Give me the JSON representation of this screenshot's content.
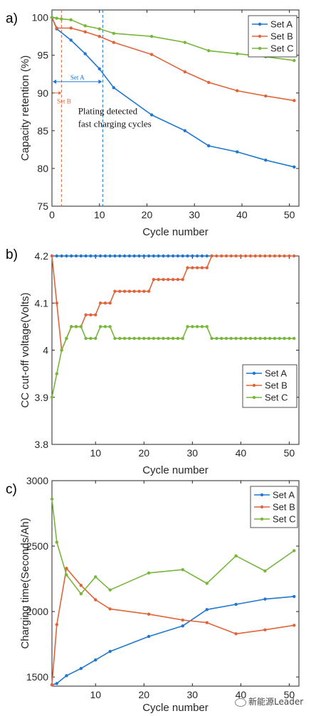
{
  "watermark": "新能源Leader",
  "colors": {
    "set_a": "#1f77d0",
    "set_b": "#e0643a",
    "set_c": "#78b63c"
  },
  "chart_data": [
    {
      "panel_label": "a)",
      "type": "line",
      "xlabel": "Cycle number",
      "ylabel": "Capacity retention (%)",
      "xlim": [
        0,
        52
      ],
      "ylim": [
        75,
        101
      ],
      "xticks": [
        0,
        10,
        20,
        30,
        40,
        50
      ],
      "yticks": [
        75,
        80,
        85,
        90,
        95,
        100
      ],
      "grid": false,
      "legend_position": "top-right",
      "series": [
        {
          "name": "Set A",
          "color": "#1f77d0",
          "x": [
            0,
            1,
            4,
            7,
            10,
            13,
            21,
            28,
            33,
            39,
            45,
            51
          ],
          "y": [
            100,
            98.5,
            97,
            95.2,
            93.2,
            90.7,
            87.1,
            85,
            83,
            82.2,
            81.1,
            80.2
          ]
        },
        {
          "name": "Set B",
          "color": "#e0643a",
          "x": [
            0,
            1,
            4,
            7,
            10,
            13,
            21,
            28,
            33,
            39,
            45,
            51
          ],
          "y": [
            100,
            98.6,
            98.6,
            98.1,
            97.5,
            96.7,
            95.1,
            92.8,
            91.4,
            90.3,
            89.6,
            89
          ]
        },
        {
          "name": "Set C",
          "color": "#78b63c",
          "x": [
            0,
            1,
            2,
            4,
            7,
            10,
            13,
            21,
            28,
            33,
            39,
            45,
            51
          ],
          "y": [
            100,
            99.9,
            99.8,
            99.7,
            98.9,
            98.5,
            97.9,
            97.5,
            96.7,
            95.6,
            95.2,
            94.8,
            94.3
          ]
        }
      ],
      "annotations": {
        "set_a_line_x": 10.7,
        "set_b_line_x": 2,
        "set_a_label": "Set A",
        "set_b_label": "Set B",
        "set_a_arrow_y": 91.5,
        "set_b_arrow_y": 90,
        "set_b_label_y": 88.6,
        "text_line1": "Plating detected",
        "text_line2": "fast charging cycles",
        "text_x": 5.5,
        "text_y1": 87.2,
        "text_y2": 85.5
      }
    },
    {
      "panel_label": "b)",
      "type": "line",
      "xlabel": "Cycle number",
      "ylabel": "CC cut-off voltage(Volts)",
      "xlim": [
        1,
        52
      ],
      "ylim": [
        3.8,
        4.2
      ],
      "xticks": [
        10,
        20,
        30,
        40,
        50
      ],
      "yticks": [
        3.8,
        3.9,
        4,
        4.1,
        4.2
      ],
      "ytick_labels": [
        "3.8",
        "3.9",
        "4",
        "4.1",
        "4.2"
      ],
      "grid": false,
      "legend_position": "bottom-right",
      "series": [
        {
          "name": "Set A",
          "color": "#1f77d0",
          "x": [
            1,
            2,
            3,
            4,
            5,
            6,
            7,
            8,
            9,
            10,
            11,
            12,
            13,
            14,
            15,
            16,
            17,
            18,
            19,
            20,
            21,
            22,
            23,
            24,
            25,
            26,
            27,
            28,
            29,
            30,
            31,
            32,
            33,
            34
          ],
          "y": [
            4.2,
            4.2,
            4.2,
            4.2,
            4.2,
            4.2,
            4.2,
            4.2,
            4.2,
            4.2,
            4.2,
            4.2,
            4.2,
            4.2,
            4.2,
            4.2,
            4.2,
            4.2,
            4.2,
            4.2,
            4.2,
            4.2,
            4.2,
            4.2,
            4.2,
            4.2,
            4.2,
            4.2,
            4.2,
            4.2,
            4.2,
            4.2,
            4.2,
            4.2
          ]
        },
        {
          "name": "Set B",
          "color": "#e0643a",
          "x": [
            1,
            2,
            3,
            4,
            5,
            6,
            7,
            8,
            9,
            10,
            11,
            12,
            13,
            14,
            15,
            16,
            17,
            18,
            19,
            20,
            21,
            22,
            23,
            24,
            25,
            26,
            27,
            28,
            29,
            30,
            31,
            32,
            33,
            34,
            35,
            36,
            37,
            38,
            39,
            40,
            41,
            42,
            43,
            44,
            45,
            46,
            47,
            48,
            49,
            50,
            51
          ],
          "y": [
            4.2,
            4.1,
            4.0,
            4.025,
            4.05,
            4.05,
            4.05,
            4.075,
            4.075,
            4.075,
            4.1,
            4.1,
            4.1,
            4.125,
            4.125,
            4.125,
            4.125,
            4.125,
            4.125,
            4.125,
            4.125,
            4.15,
            4.15,
            4.15,
            4.15,
            4.15,
            4.15,
            4.15,
            4.175,
            4.175,
            4.175,
            4.175,
            4.175,
            4.2,
            4.2,
            4.2,
            4.2,
            4.2,
            4.2,
            4.2,
            4.2,
            4.2,
            4.2,
            4.2,
            4.2,
            4.2,
            4.2,
            4.2,
            4.2,
            4.2,
            4.2
          ]
        },
        {
          "name": "Set C",
          "color": "#78b63c",
          "x": [
            1,
            2,
            3,
            4,
            5,
            6,
            7,
            8,
            9,
            10,
            11,
            12,
            13,
            14,
            15,
            16,
            17,
            18,
            19,
            20,
            21,
            22,
            23,
            24,
            25,
            26,
            27,
            28,
            29,
            30,
            31,
            32,
            33,
            34,
            35,
            36,
            37,
            38,
            39,
            40,
            41,
            42,
            43,
            44,
            45,
            46,
            47,
            48,
            49,
            50,
            51
          ],
          "y": [
            3.9,
            3.95,
            4.0,
            4.025,
            4.05,
            4.05,
            4.05,
            4.025,
            4.025,
            4.025,
            4.05,
            4.05,
            4.05,
            4.025,
            4.025,
            4.025,
            4.025,
            4.025,
            4.025,
            4.025,
            4.025,
            4.025,
            4.025,
            4.025,
            4.025,
            4.025,
            4.025,
            4.025,
            4.05,
            4.05,
            4.05,
            4.05,
            4.05,
            4.025,
            4.025,
            4.025,
            4.025,
            4.025,
            4.025,
            4.025,
            4.025,
            4.025,
            4.025,
            4.025,
            4.025,
            4.025,
            4.025,
            4.025,
            4.025,
            4.025,
            4.025
          ]
        }
      ]
    },
    {
      "panel_label": "c)",
      "type": "line",
      "xlabel": "Cycle number",
      "ylabel": "Charging time(Seconds/Ah)",
      "xlim": [
        1,
        52
      ],
      "ylim": [
        1430,
        3000
      ],
      "xticks": [
        10,
        20,
        30,
        40,
        50
      ],
      "yticks": [
        1500,
        2000,
        2500,
        3000
      ],
      "grid": false,
      "legend_position": "top-right",
      "series": [
        {
          "name": "Set A",
          "color": "#1f77d0",
          "x": [
            1,
            2,
            4,
            7,
            10,
            13,
            21,
            28,
            33,
            39,
            45,
            51
          ],
          "y": [
            1440,
            1450,
            1510,
            1565,
            1630,
            1695,
            1810,
            1890,
            2015,
            2055,
            2095,
            2115
          ]
        },
        {
          "name": "Set B",
          "color": "#e0643a",
          "x": [
            1,
            2,
            4,
            7,
            10,
            13,
            21,
            28,
            33,
            39,
            45,
            51
          ],
          "y": [
            1440,
            1900,
            2330,
            2200,
            2090,
            2020,
            1980,
            1935,
            1915,
            1830,
            1860,
            1895
          ]
        },
        {
          "name": "Set C",
          "color": "#78b63c",
          "x": [
            1,
            2,
            4,
            7,
            10,
            13,
            21,
            28,
            33,
            39,
            45,
            51
          ],
          "y": [
            2860,
            2530,
            2280,
            2135,
            2265,
            2165,
            2295,
            2320,
            2215,
            2425,
            2310,
            2465
          ]
        }
      ]
    }
  ]
}
